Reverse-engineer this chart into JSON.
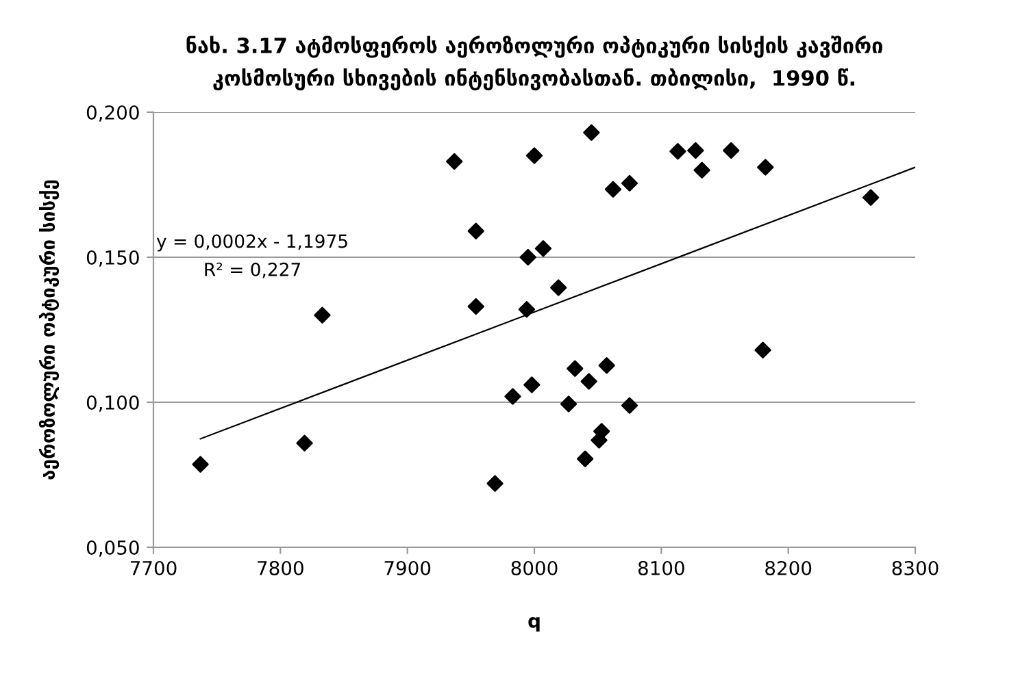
{
  "chart_data": {
    "type": "scatter",
    "title": "ნახ. 3.17 ატმოსფეროს აეროზოლური ოპტიკური სისქის კავშირი\nკოსმოსური სხივების ინტენსივობასთან. თბილისი,  1990 წ.",
    "xlabel": "q",
    "ylabel": "აეროზოლური ოპტიკური სისქე",
    "x": [
      7737,
      7819,
      7833,
      7937,
      8000,
      7954,
      7954,
      7995,
      8007,
      7994,
      8019,
      7983,
      7998,
      8027,
      7969,
      8045,
      8113,
      8127,
      8132,
      8155,
      8182,
      8062,
      8075,
      8265,
      8180,
      8032,
      8043,
      8057,
      8075,
      8053,
      8051,
      8040
    ],
    "series": [
      {
        "color": "#000000",
        "marker": "diamond",
        "values": [
          0.0786,
          0.0859,
          0.13,
          0.183,
          0.185,
          0.159,
          0.133,
          0.15,
          0.153,
          0.132,
          0.1395,
          0.102,
          0.106,
          0.0994,
          0.072,
          0.193,
          0.1865,
          0.1868,
          0.18,
          0.1868,
          0.181,
          0.1734,
          0.1755,
          0.1706,
          0.118,
          0.1116,
          0.1072,
          0.1127,
          0.0989,
          0.09,
          0.0869,
          0.0805
        ]
      },
      {
        "type": "line",
        "color": "#000000",
        "x": [
          7737,
          8300
        ],
        "values": [
          0.0874,
          0.181
        ]
      }
    ],
    "annotations": [
      "y = 0,0002x - 1,1975",
      "R² = 0,227"
    ],
    "xlim": [
      7700,
      8300
    ],
    "xticks": [
      7700,
      7800,
      7900,
      8000,
      8100,
      8200,
      8300
    ],
    "ylim": [
      0.05,
      0.2
    ],
    "yticks": [
      {
        "value": 0.05,
        "label": "0,050"
      },
      {
        "value": 0.1,
        "label": "0,100"
      },
      {
        "value": 0.15,
        "label": "0,150"
      },
      {
        "value": 0.2,
        "label": "0,200"
      }
    ],
    "grid": "y",
    "legend": false
  }
}
